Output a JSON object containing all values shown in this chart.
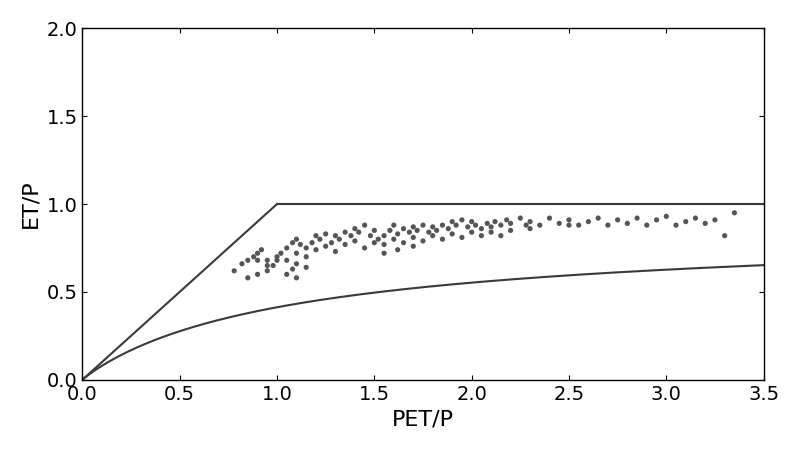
{
  "title": "",
  "xlabel": "PET/P",
  "ylabel": "ET/P",
  "xlim": [
    0,
    3.5
  ],
  "ylim": [
    0,
    2.0
  ],
  "xticks": [
    0,
    0.5,
    1.0,
    1.5,
    2.0,
    2.5,
    3.0,
    3.5
  ],
  "yticks": [
    0,
    0.5,
    1.0,
    1.5,
    2.0
  ],
  "budyko_n": 1.5,
  "line_color": "#3a3a3a",
  "scatter_color": "#555555",
  "scatter_size": 14,
  "scatter_points": [
    [
      0.78,
      0.62
    ],
    [
      0.82,
      0.66
    ],
    [
      0.85,
      0.68
    ],
    [
      0.88,
      0.7
    ],
    [
      0.9,
      0.72
    ],
    [
      0.92,
      0.74
    ],
    [
      0.95,
      0.68
    ],
    [
      0.98,
      0.65
    ],
    [
      1.0,
      0.68
    ],
    [
      1.02,
      0.72
    ],
    [
      1.05,
      0.75
    ],
    [
      1.08,
      0.78
    ],
    [
      1.1,
      0.8
    ],
    [
      1.12,
      0.77
    ],
    [
      1.15,
      0.75
    ],
    [
      1.18,
      0.78
    ],
    [
      1.2,
      0.82
    ],
    [
      1.22,
      0.8
    ],
    [
      1.25,
      0.83
    ],
    [
      1.28,
      0.78
    ],
    [
      1.3,
      0.82
    ],
    [
      1.32,
      0.8
    ],
    [
      1.35,
      0.84
    ],
    [
      1.38,
      0.82
    ],
    [
      1.4,
      0.86
    ],
    [
      1.42,
      0.84
    ],
    [
      1.45,
      0.88
    ],
    [
      1.48,
      0.82
    ],
    [
      1.5,
      0.85
    ],
    [
      1.52,
      0.8
    ],
    [
      1.55,
      0.82
    ],
    [
      1.58,
      0.85
    ],
    [
      1.6,
      0.88
    ],
    [
      1.62,
      0.83
    ],
    [
      1.65,
      0.86
    ],
    [
      1.68,
      0.84
    ],
    [
      1.7,
      0.87
    ],
    [
      1.72,
      0.85
    ],
    [
      1.75,
      0.88
    ],
    [
      1.78,
      0.84
    ],
    [
      1.8,
      0.87
    ],
    [
      1.82,
      0.85
    ],
    [
      1.85,
      0.88
    ],
    [
      1.88,
      0.86
    ],
    [
      1.9,
      0.9
    ],
    [
      1.92,
      0.88
    ],
    [
      1.95,
      0.91
    ],
    [
      1.98,
      0.87
    ],
    [
      2.0,
      0.9
    ],
    [
      2.02,
      0.88
    ],
    [
      2.05,
      0.86
    ],
    [
      2.08,
      0.89
    ],
    [
      2.1,
      0.87
    ],
    [
      2.12,
      0.9
    ],
    [
      2.15,
      0.88
    ],
    [
      2.18,
      0.91
    ],
    [
      2.2,
      0.89
    ],
    [
      2.25,
      0.92
    ],
    [
      2.28,
      0.88
    ],
    [
      2.3,
      0.9
    ],
    [
      2.35,
      0.88
    ],
    [
      2.4,
      0.92
    ],
    [
      2.45,
      0.89
    ],
    [
      2.5,
      0.91
    ],
    [
      2.55,
      0.88
    ],
    [
      2.6,
      0.9
    ],
    [
      2.65,
      0.92
    ],
    [
      2.7,
      0.88
    ],
    [
      2.75,
      0.91
    ],
    [
      2.8,
      0.89
    ],
    [
      2.85,
      0.92
    ],
    [
      2.9,
      0.88
    ],
    [
      2.95,
      0.91
    ],
    [
      3.0,
      0.93
    ],
    [
      3.05,
      0.88
    ],
    [
      3.1,
      0.9
    ],
    [
      3.15,
      0.92
    ],
    [
      3.2,
      0.89
    ],
    [
      3.25,
      0.91
    ],
    [
      1.1,
      0.72
    ],
    [
      1.15,
      0.7
    ],
    [
      1.2,
      0.74
    ],
    [
      1.25,
      0.76
    ],
    [
      1.3,
      0.73
    ],
    [
      1.35,
      0.77
    ],
    [
      1.4,
      0.79
    ],
    [
      1.45,
      0.75
    ],
    [
      1.5,
      0.78
    ],
    [
      1.55,
      0.77
    ],
    [
      1.6,
      0.8
    ],
    [
      1.65,
      0.78
    ],
    [
      1.7,
      0.81
    ],
    [
      1.75,
      0.79
    ],
    [
      1.8,
      0.82
    ],
    [
      1.85,
      0.8
    ],
    [
      1.9,
      0.83
    ],
    [
      1.95,
      0.81
    ],
    [
      2.0,
      0.84
    ],
    [
      2.05,
      0.82
    ],
    [
      2.1,
      0.84
    ],
    [
      2.15,
      0.82
    ],
    [
      2.2,
      0.85
    ],
    [
      2.3,
      0.86
    ],
    [
      2.5,
      0.88
    ],
    [
      0.9,
      0.68
    ],
    [
      0.95,
      0.65
    ],
    [
      1.0,
      0.7
    ],
    [
      1.05,
      0.68
    ],
    [
      1.1,
      0.66
    ],
    [
      1.15,
      0.64
    ],
    [
      3.3,
      0.82
    ],
    [
      3.35,
      0.95
    ],
    [
      1.05,
      0.6
    ],
    [
      1.1,
      0.58
    ],
    [
      1.08,
      0.63
    ],
    [
      1.55,
      0.72
    ],
    [
      1.62,
      0.74
    ],
    [
      1.7,
      0.76
    ],
    [
      0.85,
      0.58
    ],
    [
      0.9,
      0.6
    ],
    [
      0.95,
      0.62
    ]
  ],
  "figsize": [
    8.0,
    4.5
  ],
  "dpi": 100,
  "xlabel_fontsize": 16,
  "ylabel_fontsize": 16,
  "tick_labelsize": 14
}
